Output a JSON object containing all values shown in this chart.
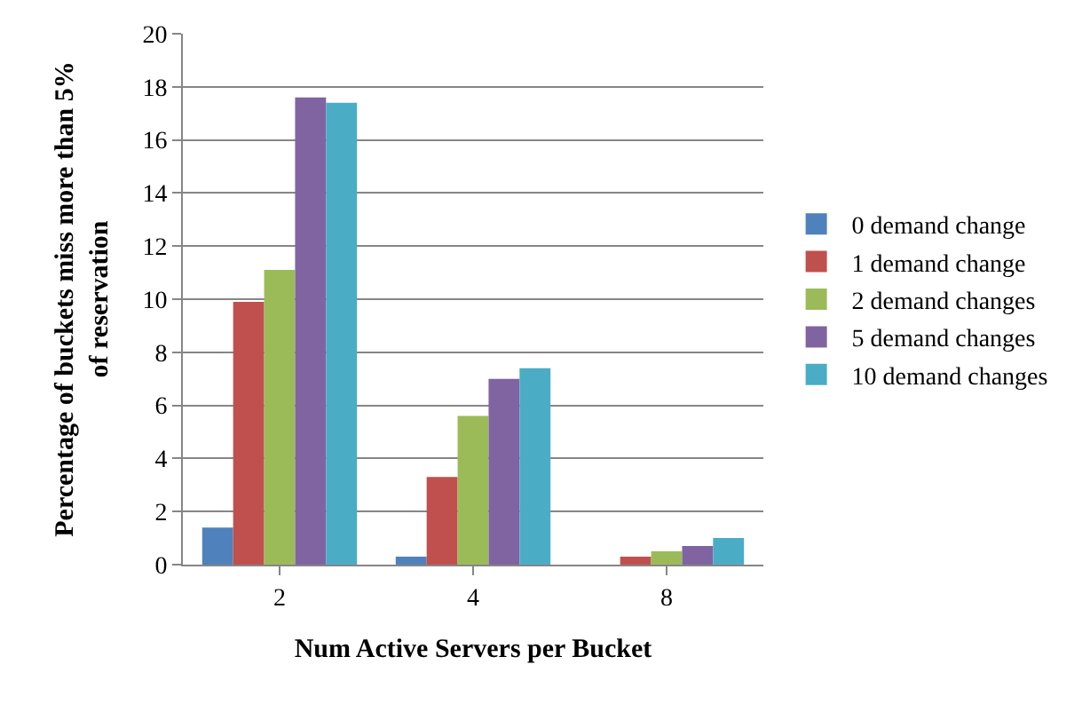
{
  "chart_data": {
    "type": "bar",
    "xlabel": "Num Active Servers per Bucket",
    "ylabel": "Percentage of buckets miss more than 5% of reservation",
    "categories": [
      "2",
      "4",
      "8"
    ],
    "series": [
      {
        "name": "0 demand change",
        "color": "#4f81bd",
        "values": [
          1.4,
          0.3,
          0
        ]
      },
      {
        "name": "1 demand change",
        "color": "#c0504d",
        "values": [
          9.9,
          3.3,
          0.3
        ]
      },
      {
        "name": "2 demand changes",
        "color": "#9bbb59",
        "values": [
          11.1,
          5.6,
          0.5
        ]
      },
      {
        "name": "5 demand changes",
        "color": "#8064a2",
        "values": [
          17.6,
          7.0,
          0.7
        ]
      },
      {
        "name": "10 demand changes",
        "color": "#4bacc6",
        "values": [
          17.4,
          7.4,
          1.0
        ]
      }
    ],
    "ylim": [
      0,
      20
    ],
    "yticks": [
      0,
      2,
      4,
      6,
      8,
      10,
      12,
      14,
      16,
      18,
      20
    ],
    "grid": "y",
    "legend": "right"
  }
}
